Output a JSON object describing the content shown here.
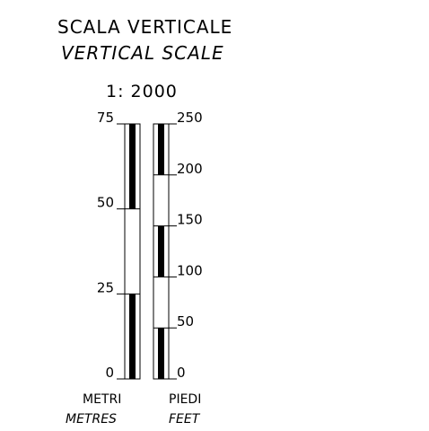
{
  "title": "SCALA VERTICALE",
  "subtitle": "VERTICAL SCALE",
  "ratio": "1: 2000",
  "metres_bar": {
    "unit_it": "METRI",
    "unit_en": "METRES",
    "ticks": [
      {
        "value": 0,
        "label": "0"
      },
      {
        "value": 25,
        "label": "25"
      },
      {
        "value": 50,
        "label": "50"
      },
      {
        "value": 75,
        "label": "75"
      }
    ],
    "segments": [
      {
        "from": 0,
        "to": 25,
        "fill": "black"
      },
      {
        "from": 25,
        "to": 50,
        "fill": "white"
      },
      {
        "from": 50,
        "to": 75,
        "fill": "black"
      }
    ]
  },
  "feet_bar": {
    "unit_it": "PIEDI",
    "unit_en": "FEET",
    "ticks": [
      {
        "value": 0,
        "label": "0"
      },
      {
        "value": 50,
        "label": "50"
      },
      {
        "value": 100,
        "label": "100"
      },
      {
        "value": 150,
        "label": "150"
      },
      {
        "value": 200,
        "label": "200"
      },
      {
        "value": 250,
        "label": "250"
      }
    ],
    "segments": [
      {
        "from": 0,
        "to": 50,
        "fill": "black"
      },
      {
        "from": 50,
        "to": 100,
        "fill": "white"
      },
      {
        "from": 100,
        "to": 150,
        "fill": "black"
      },
      {
        "from": 150,
        "to": 200,
        "fill": "white"
      },
      {
        "from": 200,
        "to": 250,
        "fill": "black"
      }
    ]
  }
}
